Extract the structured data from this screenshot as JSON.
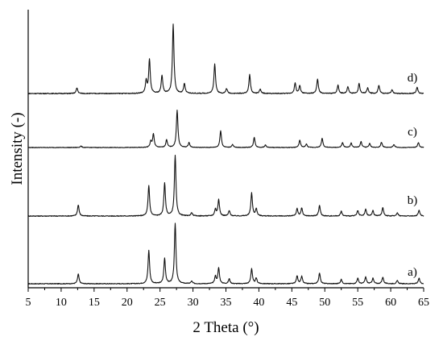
{
  "chart_data": {
    "type": "line",
    "xlabel": "2 Theta (°)",
    "ylabel": "Intensity (-)",
    "xlim": [
      5,
      65
    ],
    "xticks": [
      5,
      10,
      15,
      20,
      25,
      30,
      35,
      40,
      45,
      50,
      55,
      60,
      65
    ],
    "y_tick_labels": false,
    "grid": false,
    "stacked_offset": true,
    "series": [
      {
        "label": "a)",
        "peaks": [
          {
            "x": 12.6,
            "h": 0.16
          },
          {
            "x": 23.3,
            "h": 0.55
          },
          {
            "x": 25.7,
            "h": 0.42
          },
          {
            "x": 27.3,
            "h": 1.0
          },
          {
            "x": 29.8,
            "h": 0.04
          },
          {
            "x": 33.4,
            "h": 0.12
          },
          {
            "x": 33.9,
            "h": 0.26
          },
          {
            "x": 35.5,
            "h": 0.08
          },
          {
            "x": 38.9,
            "h": 0.25
          },
          {
            "x": 39.6,
            "h": 0.09
          },
          {
            "x": 45.8,
            "h": 0.13
          },
          {
            "x": 46.5,
            "h": 0.12
          },
          {
            "x": 49.2,
            "h": 0.18
          },
          {
            "x": 52.5,
            "h": 0.07
          },
          {
            "x": 55.0,
            "h": 0.09
          },
          {
            "x": 56.2,
            "h": 0.11
          },
          {
            "x": 57.3,
            "h": 0.09
          },
          {
            "x": 58.8,
            "h": 0.11
          },
          {
            "x": 61.0,
            "h": 0.05
          },
          {
            "x": 64.3,
            "h": 0.09
          }
        ]
      },
      {
        "label": "b)",
        "peaks": [
          {
            "x": 12.6,
            "h": 0.17
          },
          {
            "x": 23.3,
            "h": 0.46
          },
          {
            "x": 25.7,
            "h": 0.5
          },
          {
            "x": 27.3,
            "h": 0.92
          },
          {
            "x": 29.8,
            "h": 0.05
          },
          {
            "x": 33.4,
            "h": 0.1
          },
          {
            "x": 33.9,
            "h": 0.25
          },
          {
            "x": 35.5,
            "h": 0.08
          },
          {
            "x": 38.9,
            "h": 0.35
          },
          {
            "x": 39.6,
            "h": 0.11
          },
          {
            "x": 45.8,
            "h": 0.11
          },
          {
            "x": 46.5,
            "h": 0.12
          },
          {
            "x": 49.2,
            "h": 0.16
          },
          {
            "x": 52.5,
            "h": 0.07
          },
          {
            "x": 55.0,
            "h": 0.08
          },
          {
            "x": 56.2,
            "h": 0.1
          },
          {
            "x": 57.3,
            "h": 0.08
          },
          {
            "x": 58.8,
            "h": 0.13
          },
          {
            "x": 61.0,
            "h": 0.05
          },
          {
            "x": 64.3,
            "h": 0.09
          }
        ]
      },
      {
        "label": "c)",
        "peaks": [
          {
            "x": 13.0,
            "h": 0.03
          },
          {
            "x": 23.6,
            "h": 0.12
          },
          {
            "x": 24.0,
            "h": 0.28
          },
          {
            "x": 26.0,
            "h": 0.16
          },
          {
            "x": 27.6,
            "h": 0.77
          },
          {
            "x": 29.4,
            "h": 0.1
          },
          {
            "x": 34.2,
            "h": 0.35
          },
          {
            "x": 36.0,
            "h": 0.06
          },
          {
            "x": 39.3,
            "h": 0.21
          },
          {
            "x": 41.0,
            "h": 0.05
          },
          {
            "x": 46.2,
            "h": 0.15
          },
          {
            "x": 47.2,
            "h": 0.07
          },
          {
            "x": 49.6,
            "h": 0.19
          },
          {
            "x": 52.7,
            "h": 0.1
          },
          {
            "x": 54.0,
            "h": 0.09
          },
          {
            "x": 55.5,
            "h": 0.12
          },
          {
            "x": 56.8,
            "h": 0.08
          },
          {
            "x": 58.6,
            "h": 0.11
          },
          {
            "x": 60.5,
            "h": 0.06
          },
          {
            "x": 64.2,
            "h": 0.1
          }
        ]
      },
      {
        "label": "d)",
        "peaks": [
          {
            "x": 12.4,
            "h": 0.08
          },
          {
            "x": 22.9,
            "h": 0.18
          },
          {
            "x": 23.4,
            "h": 0.49
          },
          {
            "x": 25.3,
            "h": 0.26
          },
          {
            "x": 27.0,
            "h": 1.0
          },
          {
            "x": 28.7,
            "h": 0.14
          },
          {
            "x": 33.3,
            "h": 0.43
          },
          {
            "x": 35.1,
            "h": 0.07
          },
          {
            "x": 38.6,
            "h": 0.27
          },
          {
            "x": 40.2,
            "h": 0.06
          },
          {
            "x": 45.5,
            "h": 0.15
          },
          {
            "x": 46.2,
            "h": 0.11
          },
          {
            "x": 48.9,
            "h": 0.21
          },
          {
            "x": 52.0,
            "h": 0.12
          },
          {
            "x": 53.5,
            "h": 0.1
          },
          {
            "x": 55.2,
            "h": 0.14
          },
          {
            "x": 56.5,
            "h": 0.08
          },
          {
            "x": 58.2,
            "h": 0.12
          },
          {
            "x": 60.2,
            "h": 0.05
          },
          {
            "x": 64.0,
            "h": 0.09
          }
        ]
      }
    ]
  }
}
